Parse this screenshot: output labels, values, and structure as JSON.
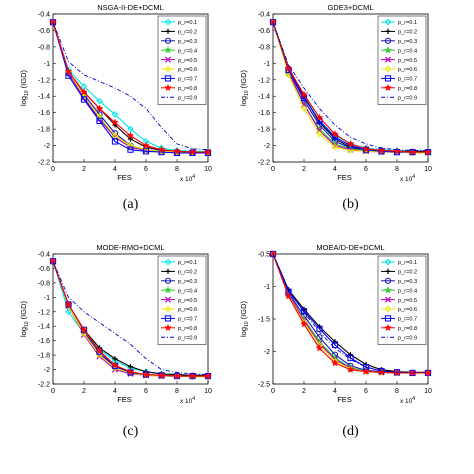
{
  "colors": {
    "p0.1": "#00e5e5",
    "p0.2": "#000000",
    "p0.3": "#1414b4",
    "p0.4": "#33cc33",
    "p0.5": "#c000c0",
    "p0.6": "#e8e800",
    "p0.7": "#0000ff",
    "p0.8": "#ff0000",
    "p0.9": "#0000cc"
  },
  "legend_labels": [
    "p_r=0.1",
    "p_r=0.2",
    "p_r=0.3",
    "p_r=0.4",
    "p_r=0.5",
    "p_r=0.6",
    "p_r=0.7",
    "p_r=0.8",
    "p_r=0.9"
  ],
  "chart_data": [
    {
      "type": "line",
      "caption": "(a)",
      "title": "NSGA-II-DE+DCML",
      "xlabel": "FES",
      "ylabel": "log10(IGD)",
      "x_multiplier": "x 10^4",
      "xlim": [
        0,
        10
      ],
      "ylim": [
        -2.2,
        -0.4
      ],
      "yticks": [
        -0.4,
        -0.6,
        -0.8,
        -1,
        -1.2,
        -1.4,
        -1.6,
        -1.8,
        -2,
        -2.2
      ],
      "xticks": [
        0,
        2,
        4,
        6,
        8,
        10
      ],
      "grid": false,
      "legend": "top-right",
      "x": [
        0,
        1,
        2,
        3,
        4,
        5,
        6,
        7,
        8,
        9,
        10
      ],
      "series": [
        {
          "name": "p_r=0.1",
          "values": [
            -0.5,
            -1.08,
            -1.28,
            -1.46,
            -1.62,
            -1.8,
            -1.95,
            -2.03,
            -2.06,
            -2.07,
            -2.07
          ]
        },
        {
          "name": "p_r=0.2",
          "values": [
            -0.5,
            -1.1,
            -1.35,
            -1.55,
            -1.75,
            -1.92,
            -2.02,
            -2.06,
            -2.07,
            -2.08,
            -2.08
          ]
        },
        {
          "name": "p_r=0.3",
          "values": [
            -0.5,
            -1.12,
            -1.38,
            -1.62,
            -1.85,
            -2.0,
            -2.05,
            -2.07,
            -2.08,
            -2.08,
            -2.08
          ]
        },
        {
          "name": "p_r=0.4",
          "values": [
            -0.5,
            -1.1,
            -1.4,
            -1.66,
            -1.9,
            -2.02,
            -2.06,
            -2.07,
            -2.08,
            -2.08,
            -2.08
          ]
        },
        {
          "name": "p_r=0.5",
          "values": [
            -0.5,
            -1.12,
            -1.42,
            -1.68,
            -1.9,
            -2.02,
            -2.06,
            -2.07,
            -2.08,
            -2.08,
            -2.08
          ]
        },
        {
          "name": "p_r=0.6",
          "values": [
            -0.5,
            -1.1,
            -1.4,
            -1.65,
            -1.88,
            -2.0,
            -2.05,
            -2.07,
            -2.08,
            -2.08,
            -2.08
          ]
        },
        {
          "name": "p_r=0.7",
          "values": [
            -0.5,
            -1.15,
            -1.44,
            -1.7,
            -1.95,
            -2.05,
            -2.07,
            -2.08,
            -2.09,
            -2.09,
            -2.09
          ]
        },
        {
          "name": "p_r=0.8",
          "values": [
            -0.5,
            -1.1,
            -1.35,
            -1.55,
            -1.72,
            -1.88,
            -2.0,
            -2.05,
            -2.07,
            -2.08,
            -2.08
          ]
        },
        {
          "name": "p_r=0.9",
          "values": [
            -0.5,
            -0.98,
            -1.14,
            -1.22,
            -1.3,
            -1.4,
            -1.55,
            -1.78,
            -1.98,
            -2.04,
            -2.05
          ]
        }
      ]
    },
    {
      "type": "line",
      "caption": "(b)",
      "title": "GDE3+DCML",
      "xlabel": "FES",
      "ylabel": "log10(IGD)",
      "x_multiplier": "x 10^4",
      "xlim": [
        0,
        10
      ],
      "ylim": [
        -2.2,
        -0.4
      ],
      "yticks": [
        -0.4,
        -0.6,
        -0.8,
        -1,
        -1.2,
        -1.4,
        -1.6,
        -1.8,
        -2,
        -2.2
      ],
      "xticks": [
        0,
        2,
        4,
        6,
        8,
        10
      ],
      "grid": false,
      "legend": "top-right",
      "x": [
        0,
        1,
        2,
        3,
        4,
        5,
        6,
        7,
        8,
        9,
        10
      ],
      "series": [
        {
          "name": "p_r=0.1",
          "values": [
            -0.5,
            -1.1,
            -1.4,
            -1.7,
            -1.88,
            -1.98,
            -2.03,
            -2.05,
            -2.06,
            -2.07,
            -2.07
          ]
        },
        {
          "name": "p_r=0.2",
          "values": [
            -0.5,
            -1.05,
            -1.4,
            -1.72,
            -1.92,
            -2.02,
            -2.05,
            -2.06,
            -2.07,
            -2.07,
            -2.07
          ]
        },
        {
          "name": "p_r=0.3",
          "values": [
            -0.5,
            -1.08,
            -1.45,
            -1.75,
            -1.95,
            -2.03,
            -2.06,
            -2.07,
            -2.08,
            -2.08,
            -2.08
          ]
        },
        {
          "name": "p_r=0.4",
          "values": [
            -0.5,
            -1.12,
            -1.5,
            -1.8,
            -1.98,
            -2.04,
            -2.06,
            -2.07,
            -2.08,
            -2.08,
            -2.08
          ]
        },
        {
          "name": "p_r=0.5",
          "values": [
            -0.5,
            -1.1,
            -1.5,
            -1.82,
            -2.0,
            -2.05,
            -2.07,
            -2.08,
            -2.08,
            -2.08,
            -2.08
          ]
        },
        {
          "name": "p_r=0.6",
          "values": [
            -0.5,
            -1.14,
            -1.55,
            -1.86,
            -2.02,
            -2.06,
            -2.07,
            -2.08,
            -2.08,
            -2.09,
            -2.09
          ]
        },
        {
          "name": "p_r=0.7",
          "values": [
            -0.5,
            -1.08,
            -1.42,
            -1.7,
            -1.9,
            -2.0,
            -2.05,
            -2.07,
            -2.08,
            -2.08,
            -2.08
          ]
        },
        {
          "name": "p_r=0.8",
          "values": [
            -0.5,
            -1.06,
            -1.38,
            -1.66,
            -1.86,
            -1.98,
            -2.04,
            -2.06,
            -2.07,
            -2.08,
            -2.08
          ]
        },
        {
          "name": "p_r=0.9",
          "values": [
            -0.5,
            -1.02,
            -1.3,
            -1.55,
            -1.75,
            -1.9,
            -1.98,
            -2.03,
            -2.05,
            -2.06,
            -2.06
          ]
        }
      ]
    },
    {
      "type": "line",
      "caption": "(c)",
      "title": "MODE-RMO+DCML",
      "xlabel": "FES",
      "ylabel": "log10(IGD)",
      "x_multiplier": "x 10^4",
      "xlim": [
        0,
        10
      ],
      "ylim": [
        -2.2,
        -0.4
      ],
      "yticks": [
        -0.4,
        -0.6,
        -0.8,
        -1,
        -1.2,
        -1.4,
        -1.6,
        -1.8,
        -2,
        -2.2
      ],
      "xticks": [
        0,
        2,
        4,
        6,
        8,
        10
      ],
      "grid": false,
      "legend": "top-right",
      "x": [
        0,
        1,
        2,
        3,
        4,
        5,
        6,
        7,
        8,
        9,
        10
      ],
      "series": [
        {
          "name": "p_r=0.1",
          "values": [
            -0.5,
            -1.2,
            -1.5,
            -1.72,
            -1.88,
            -1.98,
            -2.03,
            -2.06,
            -2.07,
            -2.08,
            -2.08
          ]
        },
        {
          "name": "p_r=0.2",
          "values": [
            -0.5,
            -1.12,
            -1.45,
            -1.7,
            -1.85,
            -1.96,
            -2.03,
            -2.06,
            -2.07,
            -2.08,
            -2.08
          ]
        },
        {
          "name": "p_r=0.3",
          "values": [
            -0.5,
            -1.1,
            -1.48,
            -1.78,
            -1.96,
            -2.04,
            -2.07,
            -2.08,
            -2.09,
            -2.09,
            -2.09
          ]
        },
        {
          "name": "p_r=0.4",
          "values": [
            -0.5,
            -1.1,
            -1.5,
            -1.8,
            -1.98,
            -2.05,
            -2.07,
            -2.08,
            -2.09,
            -2.09,
            -2.09
          ]
        },
        {
          "name": "p_r=0.5",
          "values": [
            -0.5,
            -1.12,
            -1.52,
            -1.82,
            -2.0,
            -2.06,
            -2.08,
            -2.09,
            -2.09,
            -2.09,
            -2.09
          ]
        },
        {
          "name": "p_r=0.6",
          "values": [
            -0.5,
            -1.12,
            -1.5,
            -1.8,
            -1.98,
            -2.05,
            -2.08,
            -2.09,
            -2.09,
            -2.1,
            -2.1
          ]
        },
        {
          "name": "p_r=0.7",
          "values": [
            -0.5,
            -1.1,
            -1.45,
            -1.75,
            -1.95,
            -2.04,
            -2.07,
            -2.08,
            -2.09,
            -2.09,
            -2.09
          ]
        },
        {
          "name": "p_r=0.8",
          "values": [
            -0.5,
            -1.1,
            -1.45,
            -1.74,
            -1.94,
            -2.03,
            -2.07,
            -2.08,
            -2.09,
            -2.09,
            -2.09
          ]
        },
        {
          "name": "p_r=0.9",
          "values": [
            -0.5,
            -1.0,
            -1.2,
            -1.35,
            -1.5,
            -1.65,
            -1.85,
            -2.0,
            -2.04,
            -2.06,
            -2.07
          ]
        }
      ]
    },
    {
      "type": "line",
      "caption": "(d)",
      "title": "MOEA/D-DE+DCML",
      "xlabel": "FES",
      "ylabel": "log10(IGD)",
      "x_multiplier": "x 10^4",
      "xlim": [
        0,
        10
      ],
      "ylim": [
        -2.5,
        -0.5
      ],
      "yticks": [
        -0.5,
        -1,
        -1.5,
        -2,
        -2.5
      ],
      "xticks": [
        0,
        2,
        4,
        6,
        8,
        10
      ],
      "grid": false,
      "legend": "top-right",
      "x": [
        0,
        1,
        2,
        3,
        4,
        5,
        6,
        7,
        8,
        9,
        10
      ],
      "series": [
        {
          "name": "p_r=0.1",
          "values": [
            -0.5,
            -1.12,
            -1.55,
            -1.88,
            -2.1,
            -2.25,
            -2.3,
            -2.32,
            -2.33,
            -2.33,
            -2.33
          ]
        },
        {
          "name": "p_r=0.2",
          "values": [
            -0.5,
            -1.05,
            -1.35,
            -1.62,
            -1.85,
            -2.05,
            -2.2,
            -2.28,
            -2.31,
            -2.32,
            -2.32
          ]
        },
        {
          "name": "p_r=0.3",
          "values": [
            -0.5,
            -1.1,
            -1.45,
            -1.78,
            -2.05,
            -2.22,
            -2.29,
            -2.31,
            -2.32,
            -2.33,
            -2.33
          ]
        },
        {
          "name": "p_r=0.4",
          "values": [
            -0.5,
            -1.12,
            -1.5,
            -1.85,
            -2.1,
            -2.25,
            -2.3,
            -2.32,
            -2.33,
            -2.33,
            -2.33
          ]
        },
        {
          "name": "p_r=0.5",
          "values": [
            -0.5,
            -1.12,
            -1.52,
            -1.88,
            -2.12,
            -2.26,
            -2.31,
            -2.32,
            -2.33,
            -2.33,
            -2.33
          ]
        },
        {
          "name": "p_r=0.6",
          "values": [
            -0.5,
            -1.14,
            -1.55,
            -1.9,
            -2.15,
            -2.27,
            -2.31,
            -2.32,
            -2.33,
            -2.33,
            -2.33
          ]
        },
        {
          "name": "p_r=0.7",
          "values": [
            -0.5,
            -1.08,
            -1.38,
            -1.65,
            -1.9,
            -2.1,
            -2.24,
            -2.3,
            -2.32,
            -2.33,
            -2.33
          ]
        },
        {
          "name": "p_r=0.8",
          "values": [
            -0.5,
            -1.15,
            -1.58,
            -1.95,
            -2.18,
            -2.28,
            -2.31,
            -2.32,
            -2.33,
            -2.33,
            -2.33
          ]
        },
        {
          "name": "p_r=0.9",
          "values": [
            -0.5,
            -1.05,
            -1.4,
            -1.7,
            -1.95,
            -2.12,
            -2.24,
            -2.3,
            -2.32,
            -2.32,
            -2.32
          ]
        }
      ]
    }
  ]
}
